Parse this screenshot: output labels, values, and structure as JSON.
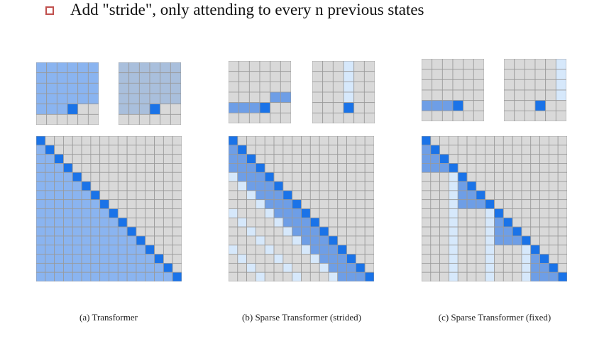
{
  "heading": {
    "text": "Add \"stride\", only attending to every n previous states"
  },
  "colors": {
    "empty": "#d9d9d9",
    "line": "#999999",
    "light_blue": "#8ab4f0",
    "mid_blue": "#6e9ee6",
    "dark_blue": "#1a73e8",
    "pale_blue": "#d6e8fb",
    "pale_gray_blue": "#a9bfdc",
    "bullet": "#c0504d"
  },
  "panels": [
    {
      "caption": "(a) Transformer"
    },
    {
      "caption": "(b) Sparse Transformer (strided)"
    },
    {
      "caption": "(c) Sparse Transformer (fixed)"
    }
  ]
}
